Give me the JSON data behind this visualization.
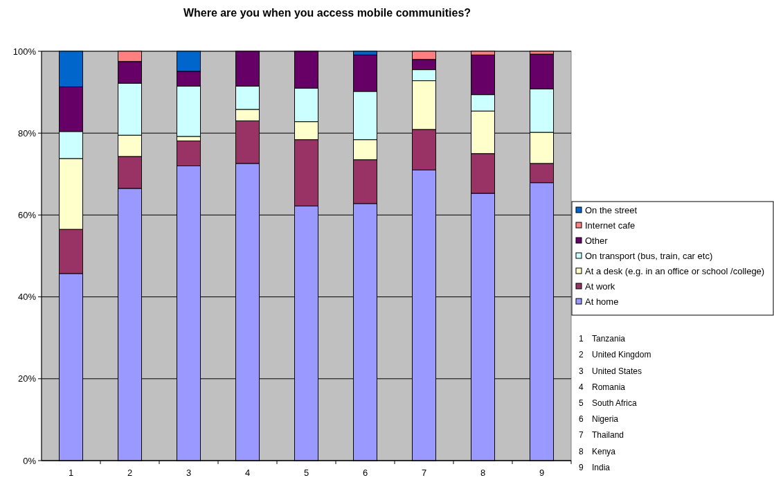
{
  "chart_data": {
    "type": "bar",
    "stacked": true,
    "title": "Where are you when you access mobile communities?",
    "categories": [
      "1",
      "2",
      "3",
      "4",
      "5",
      "6",
      "7",
      "8",
      "9"
    ],
    "series": [
      {
        "name": "At home",
        "color": "#9999ff",
        "values": [
          45.7,
          66.5,
          72,
          72.6,
          62.2,
          62.8,
          71,
          65.3,
          67.9
        ]
      },
      {
        "name": "At work",
        "color": "#993366",
        "values": [
          10.8,
          7.8,
          6.1,
          10.4,
          16.2,
          10.7,
          9.9,
          9.7,
          4.7
        ]
      },
      {
        "name": "At a desk (e.g. in an office or school /college)",
        "color": "#ffffcc",
        "values": [
          17.3,
          5.2,
          1.1,
          2.8,
          4.4,
          4.9,
          11.9,
          10.4,
          7.6
        ]
      },
      {
        "name": "On transport (bus, train, car etc)",
        "color": "#ccffff",
        "values": [
          6.6,
          12.7,
          12.3,
          5.7,
          8.2,
          11.8,
          2.7,
          4.0,
          10.6
        ]
      },
      {
        "name": "Other",
        "color": "#660066",
        "values": [
          10.9,
          5.3,
          3.6,
          8.5,
          9.0,
          8.9,
          2.5,
          9.7,
          8.5
        ]
      },
      {
        "name": "Internet cafe",
        "color": "#ff8080",
        "values": [
          0,
          2.5,
          0,
          0,
          0,
          0,
          2.0,
          0.9,
          0.7
        ]
      },
      {
        "name": "On the street",
        "color": "#0066cc",
        "values": [
          8.7,
          0,
          4.9,
          0,
          0,
          0.9,
          0,
          0,
          0
        ]
      }
    ],
    "ylim": [
      0,
      100
    ],
    "yticks": [
      {
        "value": 0,
        "label": "0%"
      },
      {
        "value": 20,
        "label": "20%"
      },
      {
        "value": 40,
        "label": "40%"
      },
      {
        "value": 60,
        "label": "60%"
      },
      {
        "value": 80,
        "label": "80%"
      },
      {
        "value": 100,
        "label": "100%"
      }
    ],
    "grid": "y",
    "legend": "right",
    "annotations": [
      "1 Tanzania",
      "2 United Kingdom",
      "3 United States",
      "4 Romania",
      "5 South Africa",
      "6 Nigeria",
      "7 Thailand",
      "8 Kenya",
      "9 India"
    ]
  }
}
